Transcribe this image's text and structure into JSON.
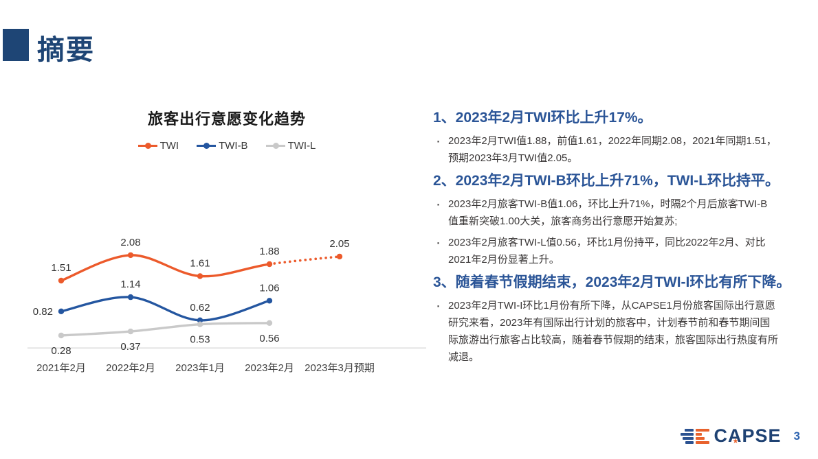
{
  "slide": {
    "title": "摘要",
    "colors": {
      "title_navy": "#1E4575",
      "heading_blue": "#2B5597",
      "body_text": "#3B3838",
      "logo_navy": "#1F4273",
      "logo_orange": "#E8622D",
      "page_number_blue": "#2E64B0"
    }
  },
  "bullet_glyph": "·",
  "chart_data": {
    "type": "line",
    "title": "旅客出行意愿变化趋势",
    "categories": [
      "2021年2月",
      "2022年2月",
      "2023年1月",
      "2023年2月",
      "2023年3月预期"
    ],
    "series": [
      {
        "name": "TWI",
        "color": "#EC5A2B",
        "values": [
          1.51,
          2.08,
          1.61,
          1.88,
          2.05
        ],
        "dashed_from_index": 3,
        "label_position": "above"
      },
      {
        "name": "TWI-B",
        "color": "#2456A0",
        "values": [
          0.82,
          1.14,
          0.62,
          1.06
        ],
        "label_position": "above",
        "first_label_position": "left"
      },
      {
        "name": "TWI-L",
        "color": "#C9C9C9",
        "values": [
          0.28,
          0.37,
          0.53,
          0.56
        ],
        "label_position": "below"
      }
    ],
    "legend_position": "top",
    "grid": false,
    "y_axis_min": 0,
    "baseline_color": "#D9D9D9"
  },
  "sections": [
    {
      "heading": "1、2023年2月TWI环比上升17%。",
      "bullets": [
        "2023年2月TWI值1.88，前值1.61，2022年同期2.08，2021年同期1.51，\n预期2023年3月TWI值2.05。"
      ]
    },
    {
      "heading": "2、2023年2月TWI-B环比上升71%，TWI-L环比持平。",
      "bullets": [
        "2023年2月旅客TWI-B值1.06，环比上升71%，时隔2个月后旅客TWI-B\n值重新突破1.00大关，旅客商务出行意愿开始复苏;",
        "2023年2月旅客TWI-L值0.56，环比1月份持平，同比2022年2月、对比\n2021年2月份显著上升。"
      ]
    },
    {
      "heading": "3、随着春节假期结束，2023年2月TWI-I环比有所下降。",
      "bullets": [
        "2023年2月TWI-I环比1月份有所下降，从CAPSE1月份旅客国际出行意愿\n研究来看，2023年有国际出行计划的旅客中，计划春节前和春节期间国\n际旅游出行旅客占比较高，随着春节假期的结束，旅客国际出行热度有所\n减退。"
      ]
    }
  ],
  "footer": {
    "logo_text": "CAPSE",
    "logo_star": "★",
    "page_number": "3"
  }
}
